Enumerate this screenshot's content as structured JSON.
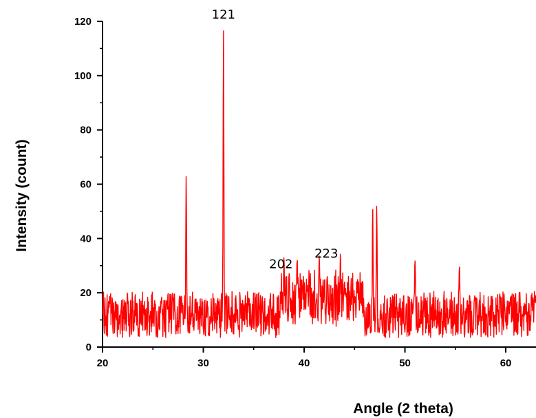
{
  "chart_data": {
    "type": "line",
    "xlabel": "Angle (2 theta)",
    "ylabel": "Intensity (count)",
    "xlim": [
      20,
      63
    ],
    "ylim": [
      0,
      120
    ],
    "xticks": [
      "20",
      "30",
      "40",
      "50",
      "60"
    ],
    "yticks": [
      "0",
      "20",
      "40",
      "60",
      "80",
      "100",
      "120"
    ],
    "grid": false,
    "line_color": "#ff0000",
    "baseline_noise": {
      "mean": 12,
      "min": 3,
      "max": 20
    },
    "peaks": [
      {
        "x": 28.3,
        "y": 63
      },
      {
        "x": 32.0,
        "y": 116
      },
      {
        "x": 38.0,
        "y": 33
      },
      {
        "x": 39.3,
        "y": 32
      },
      {
        "x": 41.5,
        "y": 32
      },
      {
        "x": 43.6,
        "y": 32
      },
      {
        "x": 46.8,
        "y": 52
      },
      {
        "x": 47.2,
        "y": 51
      },
      {
        "x": 51.0,
        "y": 31
      },
      {
        "x": 55.4,
        "y": 29
      }
    ],
    "annotations": [
      {
        "text": "121",
        "x": 32.0,
        "y": 121
      },
      {
        "text": "202",
        "x": 37.7,
        "y": 29
      },
      {
        "text": "223",
        "x": 42.2,
        "y": 33
      }
    ]
  }
}
